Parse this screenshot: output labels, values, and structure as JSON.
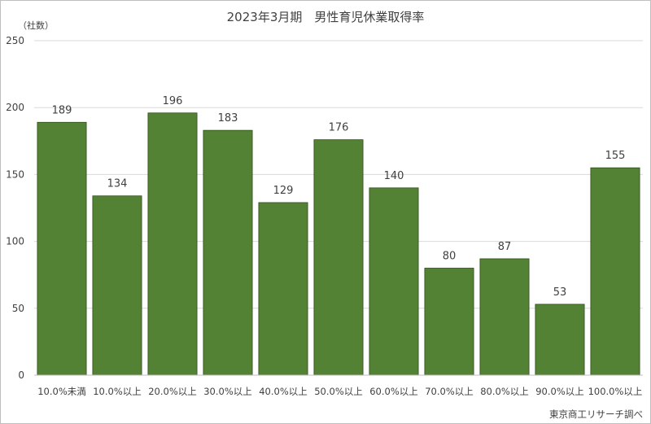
{
  "chart_data": {
    "type": "bar",
    "title": "2023年3月期　男性育児休業取得率",
    "ylabel": "（社数）",
    "categories": [
      "10.0%未満",
      "10.0%以上",
      "20.0%以上",
      "30.0%以上",
      "40.0%以上",
      "50.0%以上",
      "60.0%以上",
      "70.0%以上",
      "80.0%以上",
      "90.0%以上",
      "100.0%以上"
    ],
    "values": [
      189,
      134,
      196,
      183,
      129,
      176,
      140,
      80,
      87,
      53,
      155
    ],
    "ylim": [
      0,
      250
    ],
    "yticks": [
      "0",
      "50",
      "100",
      "150",
      "200",
      "250"
    ],
    "grid": true,
    "legend": "none",
    "bar_color": "#548235",
    "source": "東京商工リサーチ調べ"
  }
}
